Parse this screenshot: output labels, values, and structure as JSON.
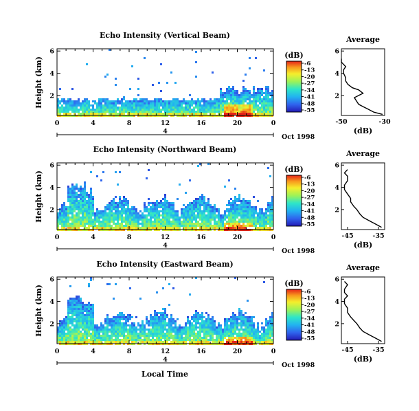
{
  "chart_data": [
    {
      "type": "heatmap",
      "title": "Echo Intensity (Vertical Beam)",
      "ylabel": "Height (km)",
      "xticks": [
        "0",
        "4",
        "8",
        "12",
        "16",
        "20",
        "0"
      ],
      "yticks": [
        "2",
        "4",
        "6"
      ],
      "date_label": "4",
      "date_suffix": "Oct 1998",
      "ylim": [
        0.2,
        6.2
      ],
      "xlim": [
        0,
        24
      ],
      "colorbar": {
        "label": "(dB)",
        "ticks": [
          "-6",
          "-13",
          "-20",
          "-27",
          "-34",
          "-41",
          "-48",
          "-55"
        ],
        "range": [
          -55,
          -6
        ]
      },
      "profile": {
        "title": "Average",
        "xlabel": "(dB)",
        "xticks": [
          "-50",
          "-30"
        ],
        "xlim": [
          -50,
          -30
        ],
        "heights": [
          0.3,
          0.5,
          0.8,
          1.0,
          1.2,
          1.5,
          1.8,
          2.0,
          2.2,
          2.5,
          2.7,
          3.0,
          3.3,
          3.6,
          4.0,
          4.3,
          4.6,
          4.8,
          5.0,
          5.3
        ],
        "values": [
          -31,
          -35,
          -38,
          -40,
          -42,
          -43,
          -44,
          -42,
          -40,
          -42,
          -45,
          -47,
          -48,
          -48,
          -49,
          -49,
          -48,
          -49,
          -50,
          -50
        ]
      }
    },
    {
      "type": "heatmap",
      "title": "Echo Intensity (Northward Beam)",
      "ylabel": "Height (km)",
      "xticks": [
        "0",
        "4",
        "8",
        "12",
        "16",
        "20",
        "0"
      ],
      "yticks": [
        "2",
        "4",
        "6"
      ],
      "date_label": "4",
      "date_suffix": "Oct 1998",
      "ylim": [
        0.2,
        6.2
      ],
      "xlim": [
        0,
        24
      ],
      "colorbar": {
        "label": "(dB)",
        "ticks": [
          "-6",
          "-13",
          "-20",
          "-27",
          "-34",
          "-41",
          "-48",
          "-55"
        ],
        "range": [
          -55,
          -6
        ]
      },
      "profile": {
        "title": "Average",
        "xlabel": "(dB)",
        "xticks": [
          "-45",
          "-35"
        ],
        "xlim": [
          -47,
          -33
        ],
        "heights": [
          0.4,
          0.7,
          1.0,
          1.3,
          1.6,
          2.0,
          2.3,
          2.7,
          3.0,
          3.4,
          3.8,
          4.2,
          4.6,
          5.0,
          5.3,
          5.6
        ],
        "values": [
          -34,
          -36,
          -38,
          -40,
          -41,
          -42,
          -43,
          -44,
          -44,
          -45,
          -46,
          -46,
          -45,
          -45,
          -46,
          -45
        ]
      }
    },
    {
      "type": "heatmap",
      "title": "Echo Intensity (Eastward Beam)",
      "ylabel": "Height (km)",
      "xticks": [
        "0",
        "4",
        "8",
        "12",
        "16",
        "20",
        "0"
      ],
      "yticks": [
        "2",
        "4",
        "6"
      ],
      "date_label": "4",
      "date_suffix": "Oct 1998",
      "ylim": [
        0.2,
        6.2
      ],
      "xlim": [
        0,
        24
      ],
      "colorbar": {
        "label": "(dB)",
        "ticks": [
          "-6",
          "-13",
          "-20",
          "-27",
          "-34",
          "-41",
          "-48",
          "-55"
        ],
        "range": [
          -55,
          -6
        ]
      },
      "profile": {
        "title": "Average",
        "xlabel": "(dB)",
        "xticks": [
          "-45",
          "-35"
        ],
        "xlim": [
          -47,
          -33
        ],
        "heights": [
          0.4,
          0.7,
          1.0,
          1.3,
          1.6,
          2.0,
          2.3,
          2.6,
          3.0,
          3.4,
          3.8,
          4.2,
          4.5,
          4.8,
          5.1,
          5.5,
          5.8
        ],
        "values": [
          -34,
          -36,
          -38,
          -40,
          -41,
          -42,
          -43,
          -44,
          -45,
          -45,
          -46,
          -46,
          -45,
          -46,
          -46,
          -45,
          -46
        ]
      }
    }
  ],
  "footer": {
    "xlabel": "Local Time"
  }
}
